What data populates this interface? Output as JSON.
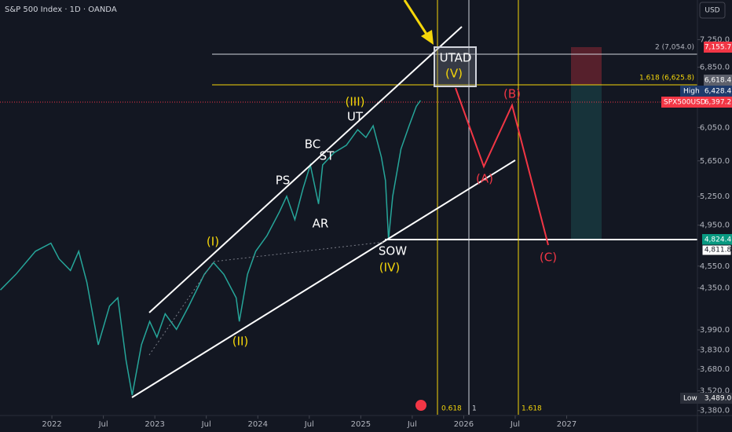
{
  "header": {
    "title": "S&P 500 Index · 1D · OANDA",
    "currency": "USD"
  },
  "chart_data": {
    "type": "line",
    "color": "#26a69a",
    "log_scale": true,
    "x": [
      2021.5,
      2021.65,
      2021.84,
      2021.99,
      2022.07,
      2022.18,
      2022.26,
      2022.34,
      2022.45,
      2022.56,
      2022.64,
      2022.72,
      2022.78,
      2022.87,
      2022.95,
      2023.02,
      2023.1,
      2023.21,
      2023.33,
      2023.48,
      2023.57,
      2023.67,
      2023.79,
      2023.82,
      2023.9,
      2023.98,
      2024.09,
      2024.21,
      2024.28,
      2024.36,
      2024.44,
      2024.51,
      2024.59,
      2024.63,
      2024.74,
      2024.86,
      2024.97,
      2025.05,
      2025.12,
      2025.2,
      2025.24,
      2025.27,
      2025.31,
      2025.39,
      2025.47,
      2025.54,
      2025.58
    ],
    "values": [
      4332,
      4473,
      4691,
      4770,
      4618,
      4509,
      4691,
      4401,
      3870,
      4191,
      4263,
      3748,
      3489,
      3870,
      4060,
      3931,
      4125,
      3995,
      4191,
      4473,
      4582,
      4473,
      4263,
      4060,
      4473,
      4691,
      4845,
      5087,
      5253,
      5007,
      5339,
      5603,
      5170,
      5603,
      5745,
      5834,
      6024,
      5929,
      6073,
      5693,
      5424,
      4808,
      5253,
      5788,
      6073,
      6321,
      6397
    ],
    "xlim": [
      2021.496,
      2028.27
    ],
    "xticks": [
      {
        "value": 2022,
        "label": "2022"
      },
      {
        "value": 2022.5,
        "label": "Jul"
      },
      {
        "value": 2023,
        "label": "2023"
      },
      {
        "value": 2023.5,
        "label": "Jul"
      },
      {
        "value": 2024,
        "label": "2024"
      },
      {
        "value": 2024.5,
        "label": "Jul"
      },
      {
        "value": 2025,
        "label": "2025"
      },
      {
        "value": 2025.5,
        "label": "Jul"
      },
      {
        "value": 2026,
        "label": "2026"
      },
      {
        "value": 2026.5,
        "label": "Jul"
      },
      {
        "value": 2027,
        "label": "2027"
      }
    ],
    "ylim": [
      3346,
      7866
    ],
    "yticks": [
      {
        "value": 7250,
        "label": "7,250.0"
      },
      {
        "value": 6850,
        "label": "6,850.0"
      },
      {
        "value": 6050,
        "label": "6,050.0"
      },
      {
        "value": 5650,
        "label": "5,650.0"
      },
      {
        "value": 5250,
        "label": "5,250.0"
      },
      {
        "value": 4950,
        "label": "4,950.0"
      },
      {
        "value": 4550,
        "label": "4,550.0"
      },
      {
        "value": 4350,
        "label": "4,350.0"
      },
      {
        "value": 3990,
        "label": "3,990.0"
      },
      {
        "value": 3830,
        "label": "3,830.0"
      },
      {
        "value": 3680,
        "label": "3,680.0"
      },
      {
        "value": 3520,
        "label": "3,520.0"
      },
      {
        "value": 3380,
        "label": "3,380.0"
      }
    ]
  },
  "annotations": {
    "utad": "UTAD",
    "v": "(V)",
    "iii": "(III)",
    "ut": "UT",
    "bc": "BC",
    "st": "ST",
    "ps": "PS",
    "ar": "AR",
    "i": "(I)",
    "ii": "(II)",
    "sow": "SOW",
    "iv": "(IV)",
    "a": "(A)",
    "b": "(B)",
    "c": "(C)"
  },
  "fib_labels": {
    "level2": "2 (7,054.0)",
    "level1618": "1.618 (6,625.8)",
    "t0618": "0.618",
    "t1": "1",
    "t1618": "1.618"
  },
  "price_tags": {
    "target": "7,155.7",
    "entry": "6,618.4",
    "high_label": "High",
    "high": "6,428.4",
    "symbol": "SPX500USD",
    "last": "6,397.2",
    "stop_green": "4,824.4",
    "sow_line": "4,811.8",
    "low_label": "Low",
    "low": "3,489.0"
  }
}
